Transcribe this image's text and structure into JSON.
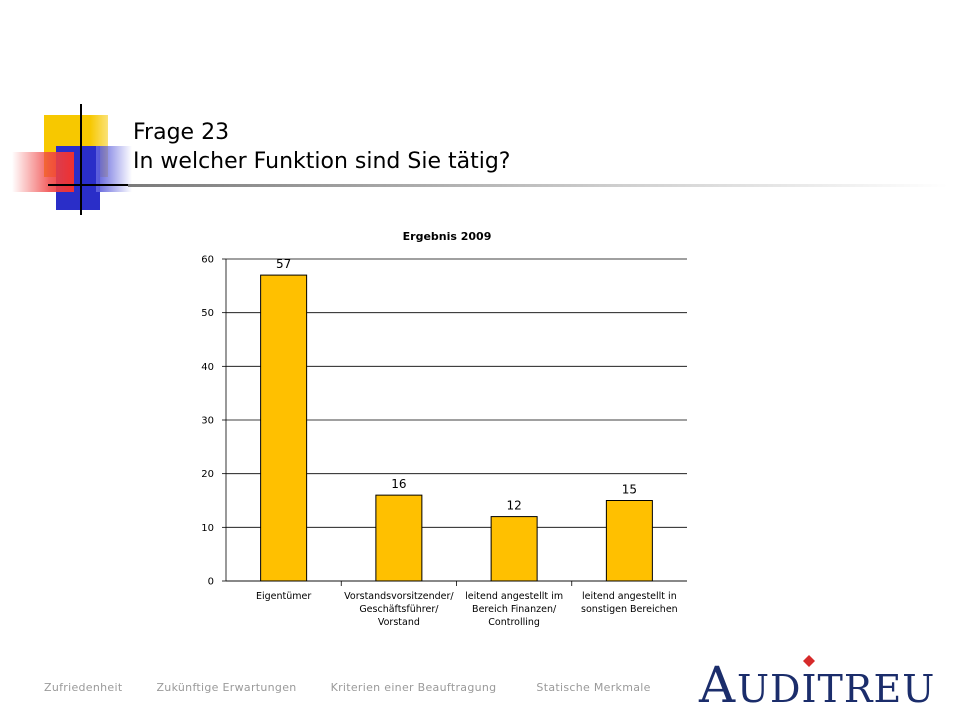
{
  "slide": {
    "title_line1": "Frage 23",
    "title_line2": "In welcher Funktion sind Sie tätig?"
  },
  "chart_data": {
    "type": "bar",
    "title": "Ergebnis 2009",
    "categories": [
      "Eigentümer",
      "Vorstandsvorsitzender/ Geschäftsführer/ Vorstand",
      "leitend angestellt im Bereich Finanzen/ Controlling",
      "leitend angestellt in sonstigen Bereichen"
    ],
    "values": [
      57,
      16,
      12,
      15
    ],
    "ylim": [
      0,
      60
    ],
    "yticks": [
      0,
      10,
      20,
      30,
      40,
      50,
      60
    ],
    "grid": true,
    "bar_color": "#ffc000",
    "xlabel": "",
    "ylabel": ""
  },
  "footer": {
    "nav": [
      "Zufriedenheit",
      "Zukünftige Erwartungen",
      "Kriterien einer Beauftragung",
      "Statische Merkmale"
    ]
  },
  "brand": {
    "name_initial": "A",
    "name_rest": "UDITREU",
    "accent_color": "#d62a2a"
  }
}
